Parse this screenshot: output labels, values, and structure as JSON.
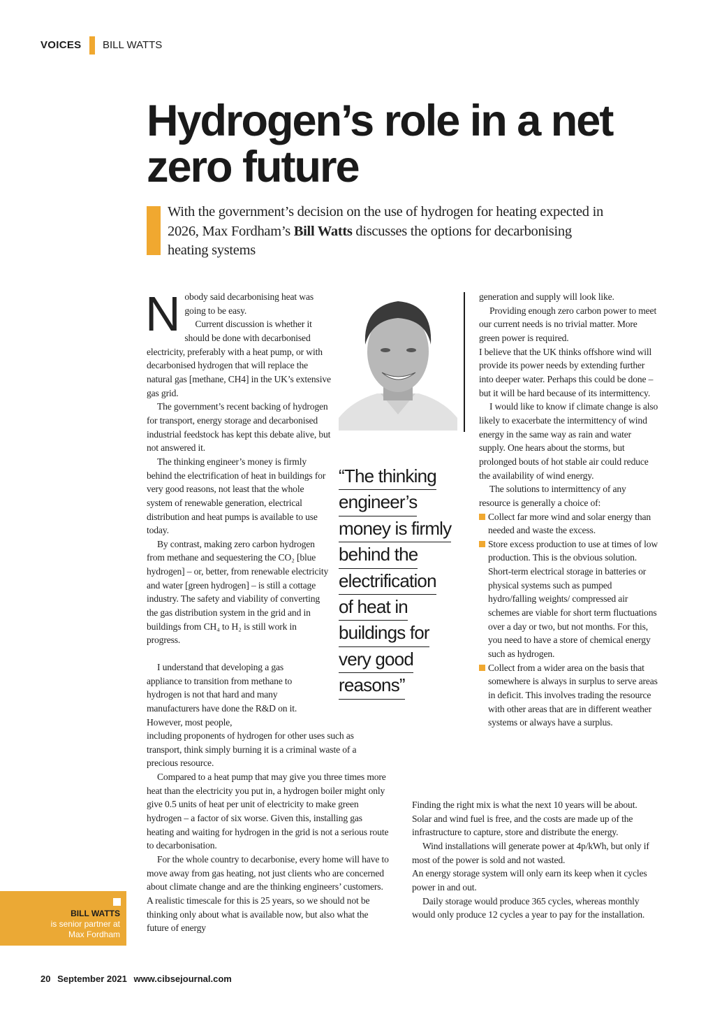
{
  "header": {
    "section": "VOICES",
    "author": "BILL WATTS",
    "accent_color": "#f0a830"
  },
  "article": {
    "title": "Hydrogen’s role in a net zero future",
    "standfirst_before": "With the government’s decision on the use of hydrogen for heating expected in 2026, Max Fordham’s ",
    "standfirst_bold": "Bill Watts",
    "standfirst_after": " discusses the options for decarbonising heating systems",
    "drop_cap": "N",
    "col1a": [
      "obody said decarbonising heat was going to be easy.",
      "Current discussion is whether it should be done with decarbonised electricity, preferably with a heat pump, or with decarbonised hydrogen that will replace the natural gas [methane, CH4] in the UK’s extensive gas grid.",
      "The government’s recent backing of hydrogen for transport, energy storage and decarbonised industrial feedstock has kept this debate alive, but not answered it.",
      "The thinking engineer’s money is firmly behind the electrification of heat in buildings for very good reasons, not least that the whole system of renewable generation, electrical distribution and heat pumps is available to use today.",
      "By contrast, making zero carbon hydrogen from methane and sequestering the CO₂ [blue hydrogen] – or, better, from renewable electricity and water [green hydrogen] – is still a cottage industry. The safety and viability of converting the gas distribution system in the grid and in buildings from CH₄ to H₂ is still work in progress."
    ],
    "col1b": "I understand that developing a gas appliance to transition from methane to hydrogen is not that hard and many manufacturers have done the R&D on it. However, most people,",
    "col1c": [
      "including proponents of hydrogen for other uses such as transport, think simply burning it is a criminal waste of a precious resource.",
      "Compared to a heat pump that may give you three times more heat than the electricity you put in, a hydrogen boiler might only give 0.5 units of heat per unit of electricity to make green hydrogen – a factor of six worse. Given this, installing gas heating and waiting for hydrogen in the grid is not a serious route to decarbonisation.",
      "For the whole country to decarbonise, every home will have to move away from gas heating, not just clients who are concerned about climate change and are the thinking engineers’ customers. A realistic timescale for this is 25 years, so we should not be thinking only about what is available now, but also what the future of energy"
    ],
    "col2": [
      "generation and supply will look like.",
      "Providing enough zero carbon power to meet our current needs is no trivial matter. More green power is required.",
      "I believe that the UK thinks offshore wind will provide its power needs by extending further into deeper water. Perhaps this could be done – but it will be hard because of its intermittency.",
      "I would like to know if climate change is also likely to exacerbate the intermittency of wind energy in the same way as rain and water supply. One hears about the storms, but prolonged bouts of hot stable air could reduce the availability of wind energy.",
      "The solutions to intermittency of any resource is generally a choice of:"
    ],
    "bullets": [
      "Collect far more wind and solar energy than needed and waste the excess.",
      "Store excess production to use at times of low production. This is the obvious solution. Short-term electrical storage in batteries or physical systems such as pumped hydro/falling weights/ compressed air schemes are viable for short term fluctuations over a day or two, but not months. For this, you need to have a store of chemical energy such as hydrogen.",
      "Collect from a wider area on the basis that somewhere is always in surplus to serve areas in deficit. This involves trading the resource with other areas that are in different weather systems or always have a surplus."
    ],
    "col3": [
      "Finding the right mix is what the next 10 years will be about. Solar and wind fuel is free, and the costs are made up of the infrastructure to capture, store and distribute the energy.",
      "Wind installations will generate power at 4p/kWh, but only if most of the power is sold and not wasted.",
      "An energy storage system will only earn its keep when it cycles power in and out.",
      "Daily storage would produce 365 cycles, whereas monthly would only produce 12 cycles a year to pay for the installation."
    ],
    "pull_quote": [
      "“The thinking",
      "engineer’s",
      "money is firmly",
      "behind the",
      "electrification",
      "of heat in",
      "buildings for",
      "very good",
      "reasons”"
    ]
  },
  "bio": {
    "name": "BILL WATTS",
    "line1": "is senior partner at",
    "line2": "Max Fordham",
    "color": "#eba935"
  },
  "footer": {
    "page": "20",
    "date": "September 2021",
    "url": "www.cibsejournal.com"
  }
}
